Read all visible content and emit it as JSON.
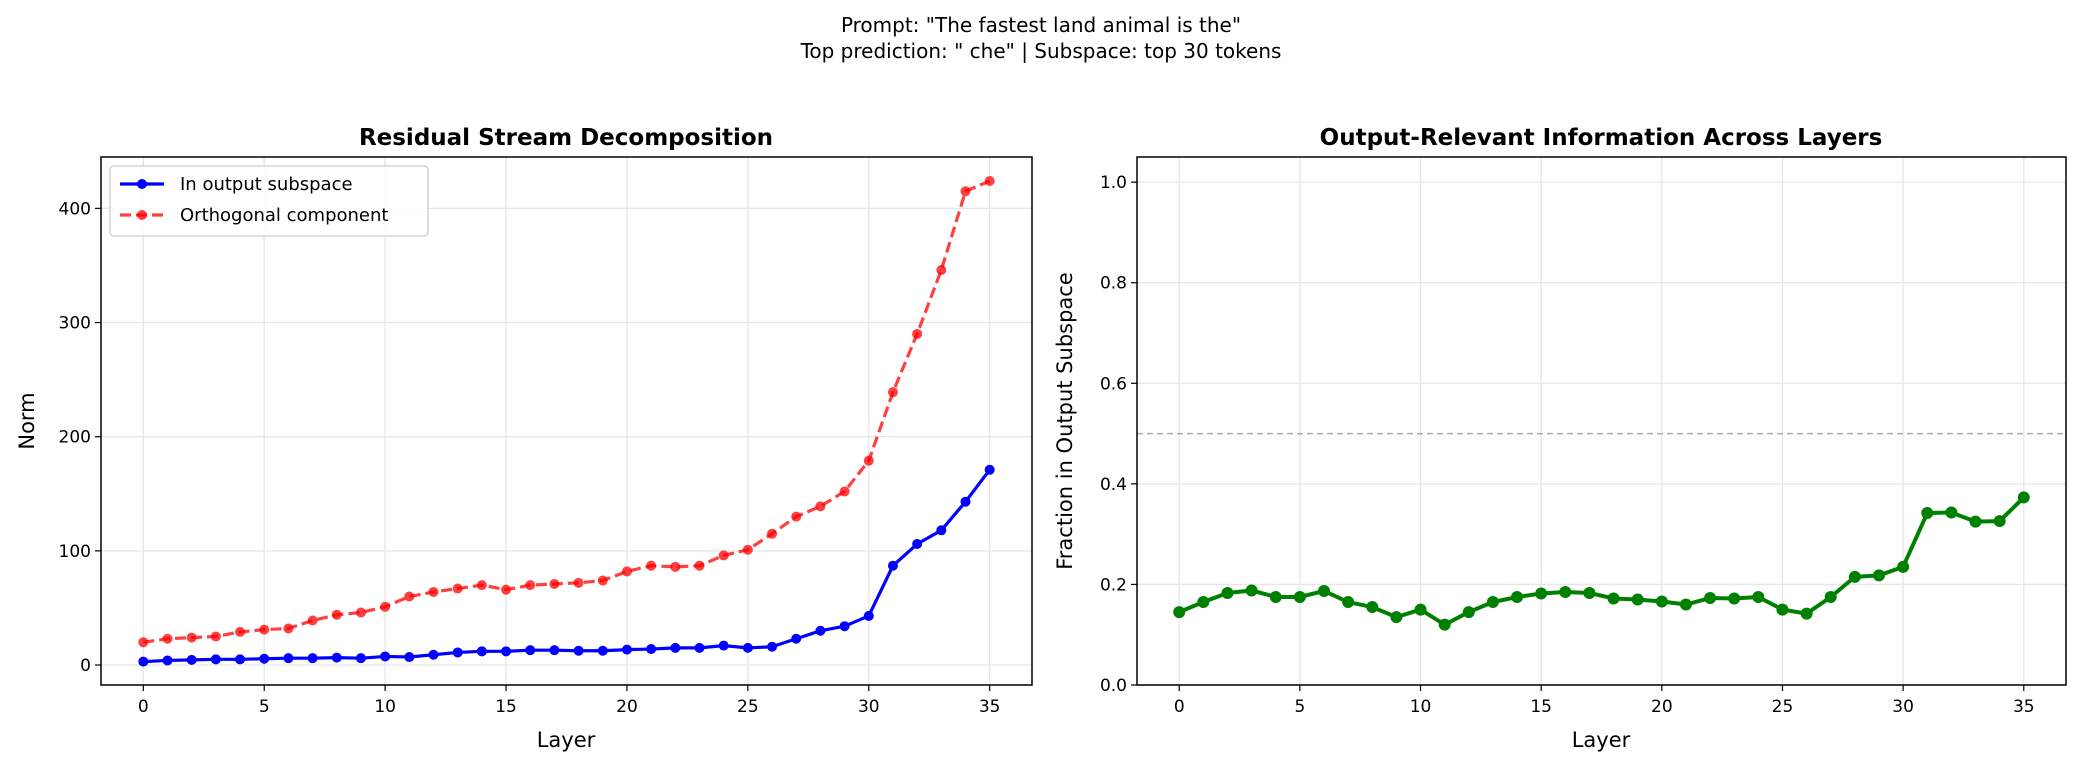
{
  "suptitle": {
    "line1": "Prompt: \"The fastest land animal is the\"",
    "line2": "Top prediction: \" che\" | Subspace: top 30 tokens"
  },
  "chart_data": [
    {
      "type": "line",
      "title": "Residual Stream Decomposition",
      "xlabel": "Layer",
      "ylabel": "Norm",
      "xlim": [
        -1.75,
        36.75
      ],
      "ylim": [
        -17.5,
        445
      ],
      "xticks": [
        0,
        5,
        10,
        15,
        20,
        25,
        30,
        35
      ],
      "yticks": [
        0,
        100,
        200,
        300,
        400
      ],
      "grid": true,
      "legend": "upper-left",
      "x": [
        0,
        1,
        2,
        3,
        4,
        5,
        6,
        7,
        8,
        9,
        10,
        11,
        12,
        13,
        14,
        15,
        16,
        17,
        18,
        19,
        20,
        21,
        22,
        23,
        24,
        25,
        26,
        27,
        28,
        29,
        30,
        31,
        32,
        33,
        34,
        35
      ],
      "series": [
        {
          "name": "In output subspace",
          "color": "#0000ff",
          "style": "solid",
          "values": [
            3,
            4,
            4.5,
            5,
            5,
            5.5,
            6,
            6,
            6.5,
            6,
            7.5,
            7,
            9,
            11,
            12,
            12,
            13,
            13,
            12.5,
            12.5,
            13.5,
            14,
            15,
            15,
            17,
            15,
            16,
            23,
            30,
            34,
            43,
            87,
            106,
            118,
            143,
            171
          ]
        },
        {
          "name": "Orthogonal component",
          "color": "#ff0000",
          "style": "dashed",
          "values": [
            20,
            23,
            24,
            25,
            29,
            31,
            32,
            39,
            44,
            46,
            51,
            60,
            64,
            67,
            70,
            66,
            70,
            71,
            72,
            74,
            82,
            87,
            86,
            87,
            96,
            101,
            115,
            130,
            139,
            152,
            179,
            239,
            290,
            346,
            415,
            424
          ]
        }
      ]
    },
    {
      "type": "line",
      "title": "Output-Relevant Information Across Layers",
      "xlabel": "Layer",
      "ylabel": "Fraction in Output Subspace",
      "xlim": [
        -1.75,
        36.75
      ],
      "ylim": [
        0,
        1.05
      ],
      "xticks": [
        0,
        5,
        10,
        15,
        20,
        25,
        30,
        35
      ],
      "yticks": [
        "0.0",
        "0.2",
        "0.4",
        "0.6",
        "0.8",
        "1.0"
      ],
      "grid": true,
      "reference_line": {
        "y": 0.5,
        "color": "#aaaaaa",
        "style": "dashed"
      },
      "x": [
        0,
        1,
        2,
        3,
        4,
        5,
        6,
        7,
        8,
        9,
        10,
        11,
        12,
        13,
        14,
        15,
        16,
        17,
        18,
        19,
        20,
        21,
        22,
        23,
        24,
        25,
        26,
        27,
        28,
        29,
        30,
        31,
        32,
        33,
        34,
        35
      ],
      "series": [
        {
          "color": "#008000",
          "style": "solid",
          "values": [
            0.145,
            0.165,
            0.183,
            0.188,
            0.175,
            0.175,
            0.187,
            0.165,
            0.155,
            0.135,
            0.15,
            0.12,
            0.145,
            0.165,
            0.175,
            0.182,
            0.185,
            0.183,
            0.172,
            0.17,
            0.166,
            0.16,
            0.173,
            0.172,
            0.175,
            0.15,
            0.142,
            0.175,
            0.215,
            0.218,
            0.235,
            0.342,
            0.343,
            0.325,
            0.326,
            0.373
          ]
        }
      ]
    }
  ]
}
